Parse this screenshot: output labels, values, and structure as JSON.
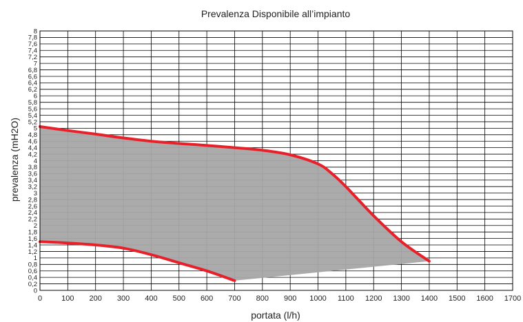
{
  "chart_data": {
    "type": "area",
    "title": "Prevalenza Disponibile all’impianto",
    "xlabel": "portata (l/h)",
    "ylabel": "prevalenza (mH2O)",
    "xlim": [
      0,
      1700
    ],
    "ylim": [
      0,
      8
    ],
    "x_ticks": [
      "0",
      "100",
      "200",
      "300",
      "400",
      "500",
      "600",
      "700",
      "800",
      "900",
      "1000",
      "1100",
      "1200",
      "1300",
      "1400",
      "1500",
      "1600",
      "1700"
    ],
    "y_ticks": [
      "0",
      "0,2",
      "0,4",
      "0,6",
      "0,8",
      "1",
      "1,2",
      "1,4",
      "1,6",
      "1,8",
      "2",
      "2,2",
      "2,4",
      "2,6",
      "2,8",
      "3",
      "3,2",
      "3,4",
      "3,6",
      "3,8",
      "4",
      "4,2",
      "4,4",
      "4,6",
      "4,8",
      "5",
      "5,2",
      "5,4",
      "5,6",
      "5,8",
      "6",
      "6,2",
      "6,4",
      "6,6",
      "6,8",
      "7",
      "7,2",
      "7,4",
      "7,6",
      "7,8",
      "8"
    ],
    "grid": true,
    "colors": {
      "curve": "#e8202a",
      "fill": "#a6a6a8",
      "grid": "#000000"
    },
    "series": [
      {
        "role": "max_curve",
        "x": [
          0,
          100,
          200,
          300,
          400,
          500,
          600,
          700,
          800,
          900,
          1000,
          1050,
          1100,
          1200,
          1300,
          1400
        ],
        "y": [
          5.05,
          4.93,
          4.82,
          4.7,
          4.6,
          4.53,
          4.47,
          4.4,
          4.32,
          4.18,
          3.9,
          3.6,
          3.2,
          2.3,
          1.5,
          0.9
        ]
      },
      {
        "role": "min_curve",
        "x": [
          0,
          100,
          200,
          300,
          400,
          500,
          600,
          700
        ],
        "y": [
          1.5,
          1.46,
          1.4,
          1.3,
          1.1,
          0.85,
          0.6,
          0.3
        ]
      },
      {
        "role": "lower_boundary",
        "x": [
          700,
          1400
        ],
        "y": [
          0.3,
          0.9
        ]
      }
    ]
  }
}
